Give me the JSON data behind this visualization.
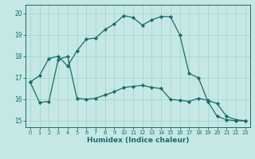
{
  "xlabel": "Humidex (Indice chaleur)",
  "bg_color": "#c5e8e4",
  "line_color": "#1a6b6b",
  "grid_color": "#a8d4d0",
  "xlim": [
    -0.5,
    23.5
  ],
  "ylim": [
    14.7,
    20.4
  ],
  "yticks": [
    15,
    16,
    17,
    18,
    19,
    20
  ],
  "xticks": [
    0,
    1,
    2,
    3,
    4,
    5,
    6,
    7,
    8,
    9,
    10,
    11,
    12,
    13,
    14,
    15,
    16,
    17,
    18,
    19,
    20,
    21,
    22,
    23
  ],
  "series1_x": [
    0,
    1,
    2,
    3,
    4,
    5,
    6,
    7,
    8,
    9,
    10,
    11,
    12,
    13,
    14,
    15,
    16,
    17,
    18,
    19,
    20,
    21,
    22,
    23
  ],
  "series1_y": [
    16.8,
    17.1,
    17.9,
    18.0,
    17.55,
    18.25,
    18.8,
    18.85,
    19.25,
    19.5,
    19.9,
    19.8,
    19.45,
    19.7,
    19.85,
    19.85,
    19.0,
    17.2,
    17.0,
    15.9,
    15.2,
    15.05,
    15.0,
    15.0
  ],
  "series2_x": [
    0,
    1,
    2,
    3,
    4,
    5,
    6,
    7,
    8,
    9,
    10,
    11,
    12,
    13,
    14,
    15,
    16,
    17,
    18,
    19,
    20,
    21,
    22,
    23
  ],
  "series2_y": [
    16.8,
    15.85,
    15.9,
    17.85,
    18.0,
    16.05,
    16.0,
    16.05,
    16.2,
    16.35,
    16.55,
    16.6,
    16.65,
    16.55,
    16.5,
    16.0,
    15.95,
    15.9,
    16.05,
    15.95,
    15.8,
    15.2,
    15.05,
    15.0
  ]
}
